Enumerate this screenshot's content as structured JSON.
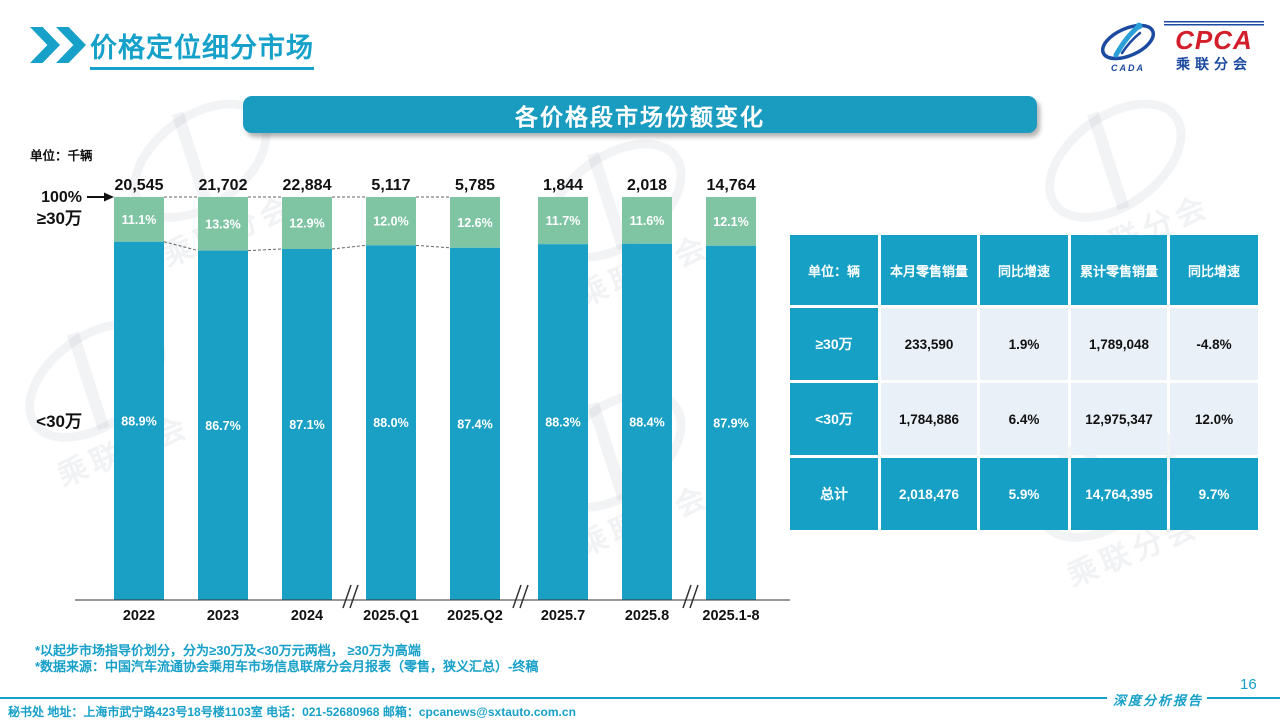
{
  "header": {
    "title": "价格定位细分市场"
  },
  "logo": {
    "cada_text": "CADA",
    "cpca_text": "CPCA",
    "sub_text": "乘联分会"
  },
  "banner": {
    "title": "各价格段市场份额变化"
  },
  "chart_data": {
    "type": "bar",
    "stacked": true,
    "unit_label": "单位：千辆",
    "axis_label_100": "100%",
    "categories": [
      "2022",
      "2023",
      "2024",
      "2025.Q1",
      "2025.Q2",
      "2025.7",
      "2025.8",
      "2025.1-8"
    ],
    "totals": [
      "20,545",
      "21,702",
      "22,884",
      "5,117",
      "5,785",
      "1,844",
      "2,018",
      "14,764"
    ],
    "series": [
      {
        "name": "≥30万",
        "color": "#7fc5a3",
        "values_pct": [
          11.1,
          13.3,
          12.9,
          12.0,
          12.6,
          11.7,
          11.6,
          12.1
        ]
      },
      {
        "name": "<30万",
        "color": "#1ba0c5",
        "values_pct": [
          88.9,
          86.7,
          87.1,
          88.0,
          87.4,
          88.3,
          88.4,
          87.9
        ]
      }
    ],
    "connected_bars": 5,
    "axis_breaks_after": [
      2,
      4,
      6
    ],
    "ylim": [
      0,
      100
    ],
    "grid": false,
    "legend_position": "left-axis"
  },
  "table": {
    "headers": [
      "单位：辆",
      "本月零售销量",
      "同比增速",
      "累计零售销量",
      "同比增速"
    ],
    "rows": [
      {
        "label": "≥30万",
        "cells": [
          "233,590",
          "1.9%",
          "1,789,048",
          "-4.8%"
        ],
        "highlight": false
      },
      {
        "label": "<30万",
        "cells": [
          "1,784,886",
          "6.4%",
          "12,975,347",
          "12.0%"
        ],
        "highlight": false
      },
      {
        "label": "总计",
        "cells": [
          "2,018,476",
          "5.9%",
          "14,764,395",
          "9.7%"
        ],
        "highlight": true
      }
    ]
  },
  "notes": [
    "*以起步市场指导价划分，分为≥30万及<30万元两档， ≥30万为高端",
    "*数据来源：中国汽车流通协会乘用车市场信息联席分会月报表（零售，狭义汇总）-终稿"
  ],
  "footer": {
    "report_label": "深度分析报告",
    "page_number": "16",
    "contact": "秘书处  地址：上海市武宁路423号18号楼1103室  电话：021-52680968   邮箱：cpcanews@sxtauto.com.cn"
  },
  "watermark": {
    "text": "乘联分会"
  },
  "colors": {
    "teal": "#17a0c8",
    "bar_teal": "#1ba0c5",
    "bar_green": "#7fc5a3",
    "table_light": "#e9f0f8",
    "cpca_red": "#d21f2b",
    "cpca_blue": "#1c4aa0"
  }
}
